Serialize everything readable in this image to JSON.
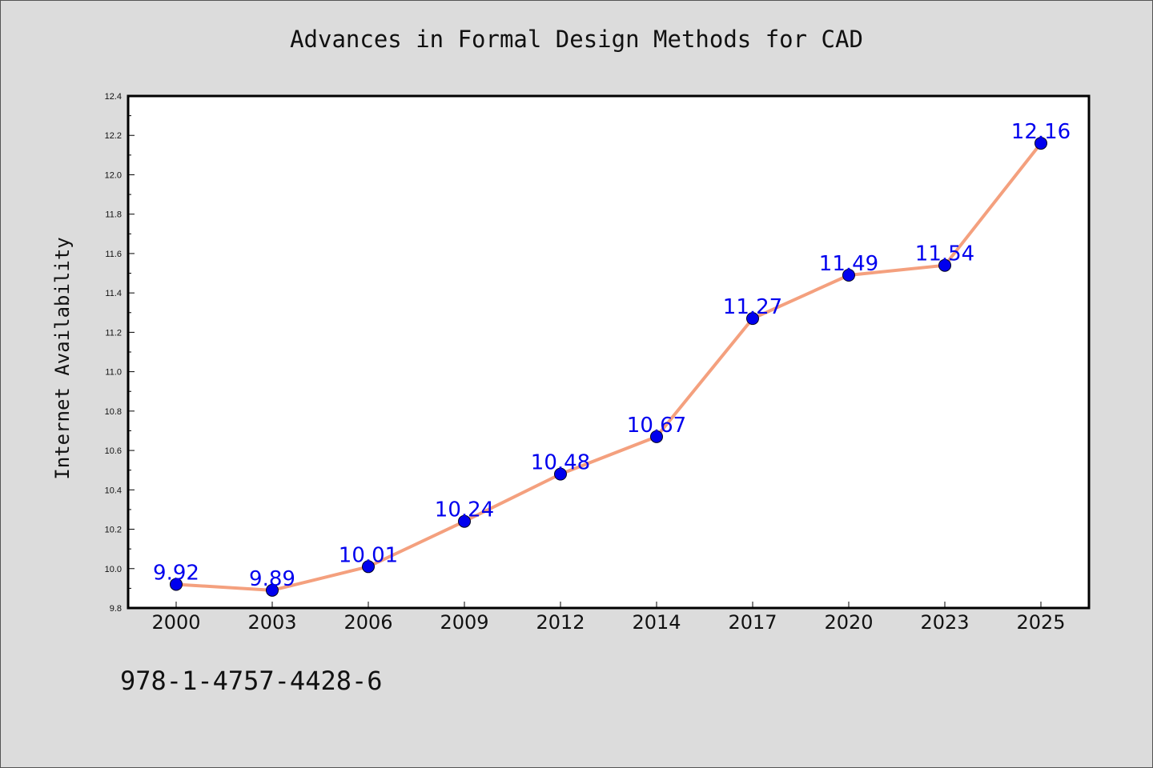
{
  "chart_data": {
    "type": "line",
    "title": "Advances in Formal Design Methods for CAD",
    "xlabel": "",
    "ylabel": "Internet Availability",
    "categories": [
      "2000",
      "2003",
      "2006",
      "2009",
      "2012",
      "2014",
      "2017",
      "2020",
      "2023",
      "2025"
    ],
    "series": [
      {
        "values": [
          9.92,
          9.89,
          10.01,
          10.24,
          10.48,
          10.67,
          11.27,
          11.49,
          11.54,
          12.16
        ]
      }
    ],
    "data_labels": [
      "9.92",
      "9.89",
      "10.01",
      "10.24",
      "10.48",
      "10.67",
      "11.27",
      "11.49",
      "11.54",
      "12.16"
    ],
    "ylim": [
      9.8,
      12.4
    ],
    "yticks": [
      "9.8",
      "10.0",
      "10.2",
      "10.4",
      "10.6",
      "10.8",
      "11.0",
      "11.2",
      "11.4",
      "11.6",
      "11.8",
      "12.0",
      "12.2",
      "12.4"
    ],
    "grid": false,
    "colors": {
      "line": "#f4a07e",
      "marker": "#0000ee",
      "data_label": "#0000ee",
      "background": "#dcdcdc",
      "plot_background": "#ffffff"
    }
  },
  "footer": {
    "isbn": "978-1-4757-4428-6"
  }
}
